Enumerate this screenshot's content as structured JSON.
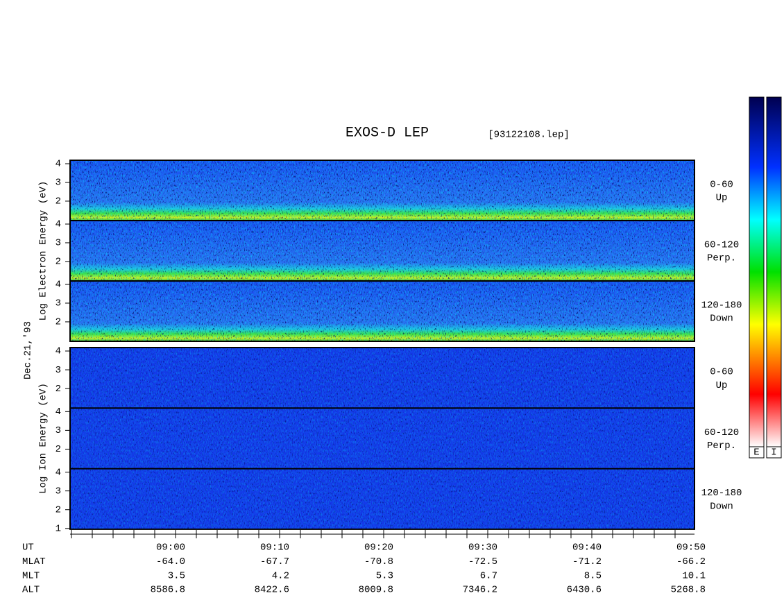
{
  "header": {
    "title": "EXOS-D LEP",
    "file": "[93122108.lep]"
  },
  "date": "Dec.21,'93",
  "electron": {
    "axis_label": "Log Electron Energy (eV)",
    "panels": [
      {
        "range": "0-60",
        "direction": "Up",
        "yticks": [
          "4",
          "3",
          "2"
        ]
      },
      {
        "range": "60-120",
        "direction": "Perp.",
        "yticks": [
          "4",
          "3",
          "2"
        ]
      },
      {
        "range": "120-180",
        "direction": "Down",
        "yticks": [
          "4",
          "3",
          "2"
        ]
      }
    ]
  },
  "ion": {
    "axis_label": "Log Ion Energy (eV)",
    "panels": [
      {
        "range": "0-60",
        "direction": "Up",
        "yticks": [
          "4",
          "3",
          "2"
        ]
      },
      {
        "range": "60-120",
        "direction": "Perp.",
        "yticks": [
          "4",
          "3",
          "2"
        ]
      },
      {
        "range": "120-180",
        "direction": "Down",
        "yticks": [
          "4",
          "3",
          "2",
          "1"
        ]
      }
    ]
  },
  "time_axis": {
    "rows": [
      {
        "label": "UT",
        "values": [
          "09:00",
          "09:10",
          "09:20",
          "09:30",
          "09:40",
          "09:50"
        ]
      },
      {
        "label": "MLAT",
        "values": [
          "-64.0",
          "-67.7",
          "-70.8",
          "-72.5",
          "-71.2",
          "-66.2"
        ]
      },
      {
        "label": "MLT",
        "values": [
          "3.5",
          "4.2",
          "5.3",
          "6.7",
          "8.5",
          "10.1"
        ]
      },
      {
        "label": "ALT",
        "values": [
          "8586.8",
          "8422.6",
          "8009.8",
          "7346.2",
          "6430.6",
          "5268.8"
        ]
      }
    ]
  },
  "colorbar": {
    "labels": [
      "E",
      "I"
    ]
  }
}
